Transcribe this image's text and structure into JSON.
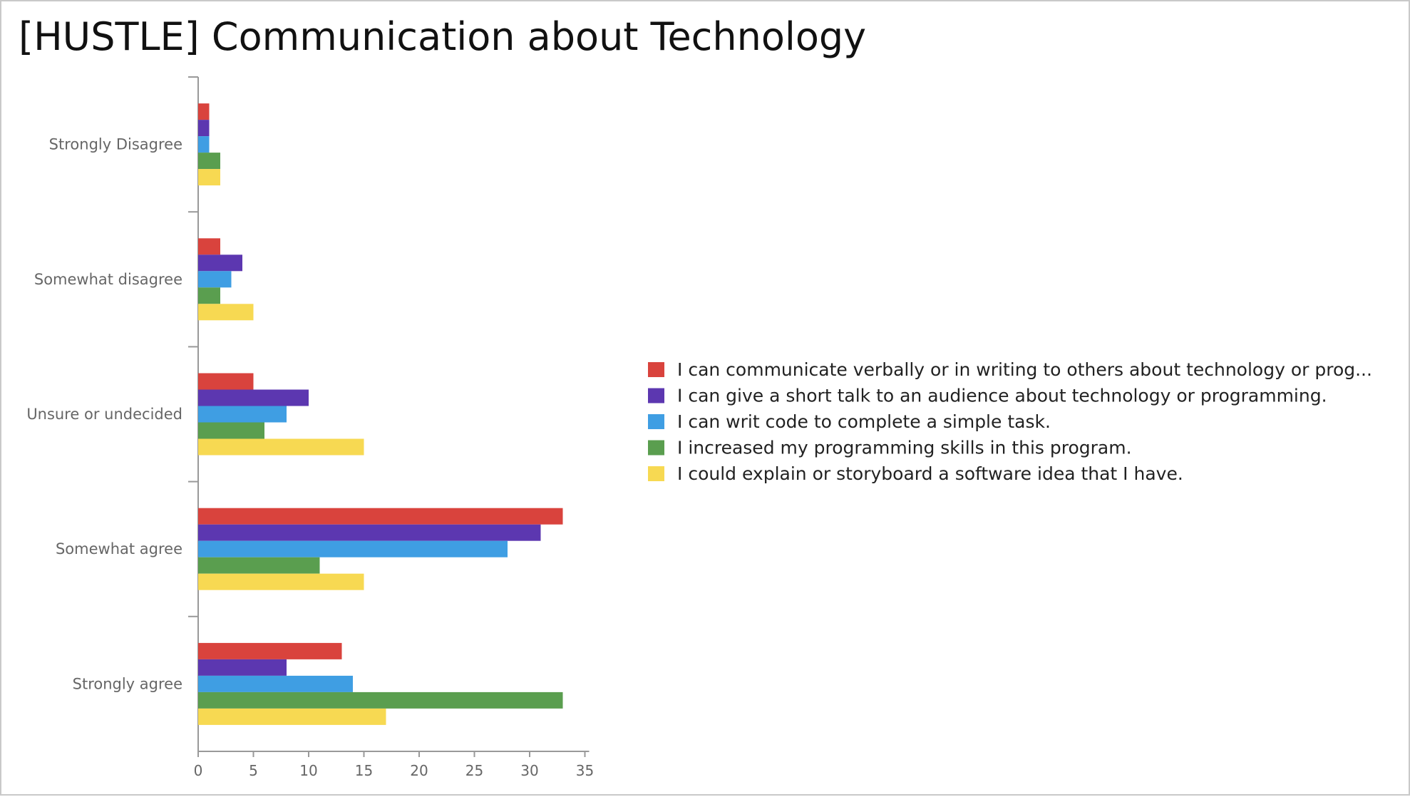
{
  "slide": {
    "title": "[HUSTLE] Communication about Technology"
  },
  "chart_data": {
    "type": "bar",
    "orientation": "horizontal",
    "title": "",
    "xlabel": "",
    "ylabel": "",
    "xlim": [
      0,
      35
    ],
    "x_ticks": [
      0,
      5,
      10,
      15,
      20,
      25,
      30,
      35
    ],
    "grid": false,
    "legend_position": "right",
    "categories": [
      "Strongly Disagree",
      "Somewhat disagree",
      "Unsure or undecided",
      "Somewhat agree",
      "Strongly agree"
    ],
    "series": [
      {
        "name": "I can communicate verbally or in writing to others about technology or prog...",
        "color": "#d9433d",
        "values": [
          1,
          2,
          5,
          33,
          13
        ]
      },
      {
        "name": "I can give a short talk to an audience about technology or programming.",
        "color": "#5c37b0",
        "values": [
          1,
          4,
          10,
          31,
          8
        ]
      },
      {
        "name": "I can writ code to complete a simple task.",
        "color": "#3f9ee3",
        "values": [
          1,
          3,
          8,
          28,
          14
        ]
      },
      {
        "name": "I increased my programming skills in this program.",
        "color": "#5a9e4f",
        "values": [
          2,
          2,
          6,
          11,
          33
        ]
      },
      {
        "name": "I could explain or storyboard a software idea that I have.",
        "color": "#f7d952",
        "values": [
          2,
          5,
          15,
          15,
          17
        ]
      }
    ]
  }
}
